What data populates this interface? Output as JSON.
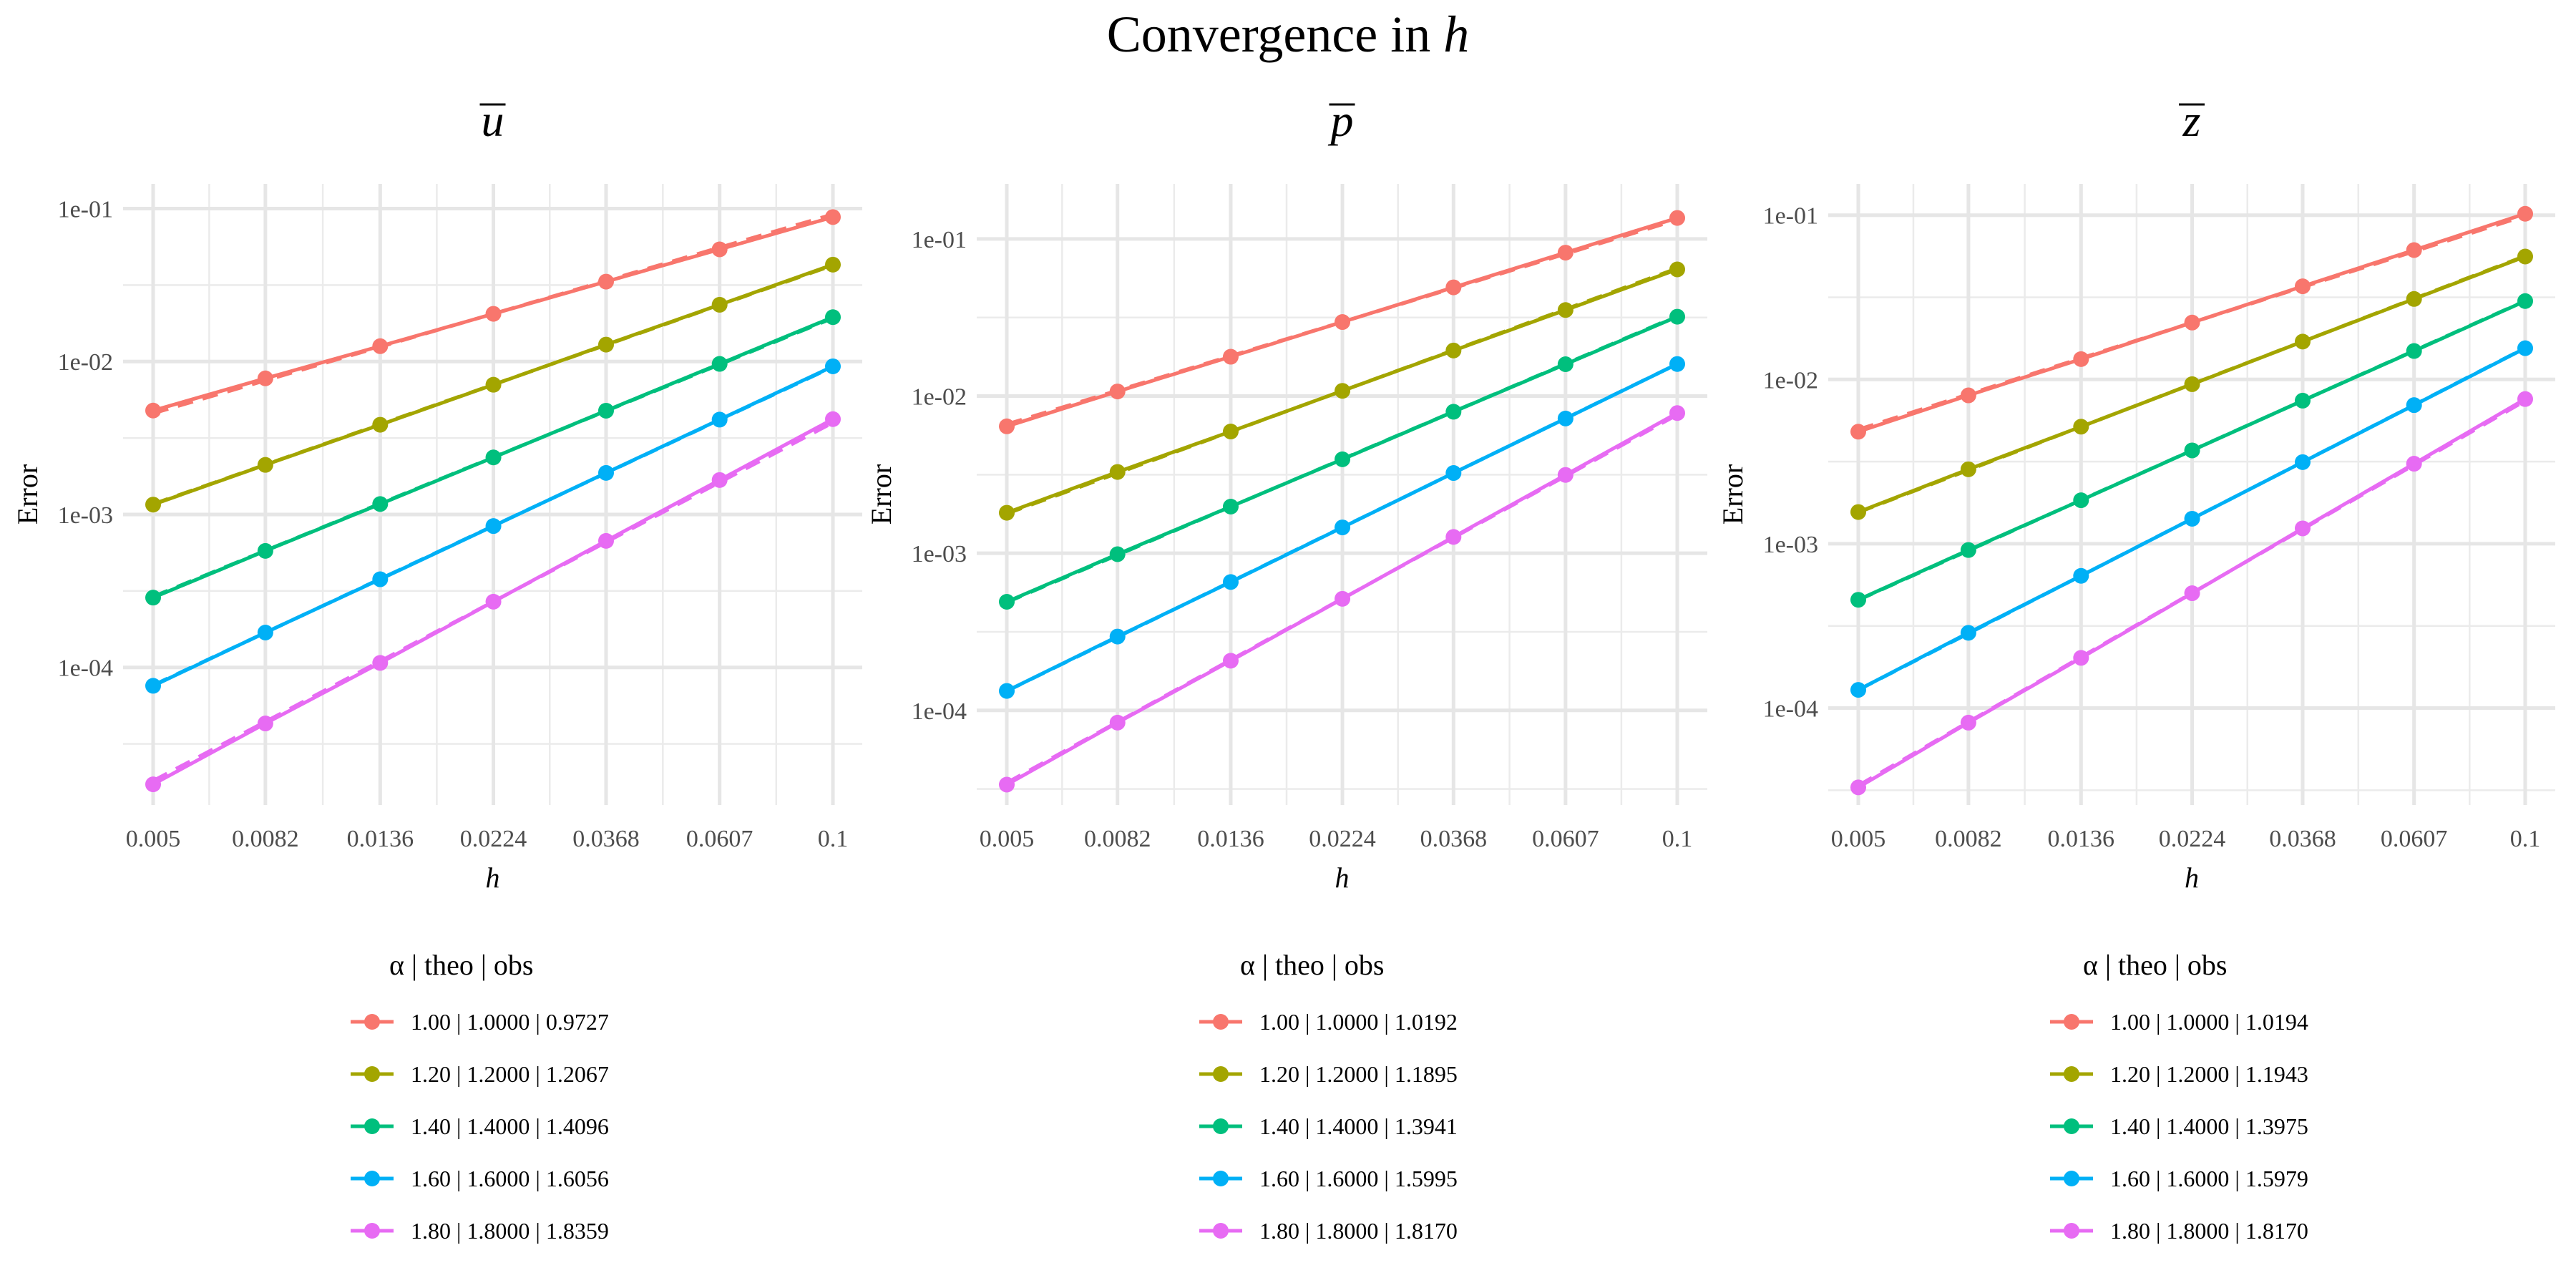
{
  "figure": {
    "title_text": "Convergence in",
    "title_var": "h"
  },
  "chart_data": [
    {
      "type": "line",
      "title": "u",
      "title_overline": true,
      "xlabel": "h",
      "ylabel": "Error",
      "x_scale": "log",
      "y_scale": "log",
      "x": [
        0.005,
        0.0082,
        0.0136,
        0.0224,
        0.0368,
        0.0607,
        0.1
      ],
      "x_tick_labels": [
        "0.005",
        "0.0082",
        "0.0136",
        "0.0224",
        "0.0368",
        "0.0607",
        "0.1"
      ],
      "y_ticks": [
        0.1,
        0.01,
        0.001,
        0.0001
      ],
      "y_tick_labels": [
        "1e-01",
        "1e-02",
        "1e-03",
        "1e-04"
      ],
      "ylim": [
        1.26e-05,
        0.145
      ],
      "grid": true,
      "legend_title": "α  | theo  | obs",
      "legend_position": "bottom",
      "series": [
        {
          "name": "1.00 | 1.0000 | 0.9727",
          "alpha": 1.0,
          "theo": 1.0,
          "obs": 0.9727,
          "color": "#F8766D",
          "values": [
            0.00478,
            0.00776,
            0.0126,
            0.0205,
            0.0333,
            0.0541,
            0.088
          ]
        },
        {
          "name": "1.20 | 1.2000 | 1.2067",
          "alpha": 1.2,
          "theo": 1.2,
          "obs": 1.2067,
          "color": "#A3A500",
          "values": [
            0.00116,
            0.00211,
            0.00386,
            0.00705,
            0.0129,
            0.0235,
            0.043
          ]
        },
        {
          "name": "1.40 | 1.4000 | 1.4096",
          "alpha": 1.4,
          "theo": 1.4,
          "obs": 1.4096,
          "color": "#00BF7D",
          "values": [
            0.000286,
            0.000578,
            0.00117,
            0.00236,
            0.00477,
            0.00965,
            0.0195
          ]
        },
        {
          "name": "1.60 | 1.6000 | 1.6056",
          "alpha": 1.6,
          "theo": 1.6,
          "obs": 1.6056,
          "color": "#00B0F6",
          "values": [
            7.58e-05,
            0.000169,
            0.000377,
            0.00084,
            0.00187,
            0.00417,
            0.0093
          ]
        },
        {
          "name": "1.80 | 1.8000 | 1.8359",
          "alpha": 1.8,
          "theo": 1.8,
          "obs": 1.8359,
          "color": "#E76BF3",
          "values": [
            1.72e-05,
            4.3e-05,
            0.000107,
            0.000269,
            0.000672,
            0.00168,
            0.0042
          ]
        }
      ]
    },
    {
      "type": "line",
      "title": "p",
      "title_overline": true,
      "xlabel": "h",
      "ylabel": "Error",
      "x_scale": "log",
      "y_scale": "log",
      "x": [
        0.005,
        0.0082,
        0.0136,
        0.0224,
        0.0368,
        0.0607,
        0.1
      ],
      "x_tick_labels": [
        "0.005",
        "0.0082",
        "0.0136",
        "0.0224",
        "0.0368",
        "0.0607",
        "0.1"
      ],
      "y_ticks": [
        0.1,
        0.01,
        0.001,
        0.0001
      ],
      "y_tick_labels": [
        "1e-01",
        "1e-02",
        "1e-03",
        "1e-04"
      ],
      "ylim": [
        2.5e-05,
        0.224
      ],
      "grid": true,
      "legend_title": "α  | theo  | obs",
      "legend_position": "bottom",
      "series": [
        {
          "name": "1.00 | 1.0000 | 1.0192",
          "alpha": 1.0,
          "theo": 1.0,
          "obs": 1.0192,
          "color": "#F8766D",
          "values": [
            0.00642,
            0.0107,
            0.0178,
            0.0296,
            0.0492,
            0.0818,
            0.136
          ]
        },
        {
          "name": "1.20 | 1.2000 | 1.1895",
          "alpha": 1.2,
          "theo": 1.2,
          "obs": 1.1895,
          "color": "#A3A500",
          "values": [
            0.00181,
            0.00329,
            0.00595,
            0.0108,
            0.0195,
            0.0353,
            0.064
          ]
        },
        {
          "name": "1.40 | 1.4000 | 1.3941",
          "alpha": 1.4,
          "theo": 1.4,
          "obs": 1.3941,
          "color": "#00BF7D",
          "values": [
            0.000491,
            0.000986,
            0.00198,
            0.00396,
            0.00795,
            0.01595,
            0.032
          ]
        },
        {
          "name": "1.60 | 1.6000 | 1.5995",
          "alpha": 1.6,
          "theo": 1.6,
          "obs": 1.5995,
          "color": "#00B0F6",
          "values": [
            0.000133,
            0.000295,
            0.000656,
            0.00146,
            0.00324,
            0.0072,
            0.016
          ]
        },
        {
          "name": "1.80 | 1.8000 | 1.8170",
          "alpha": 1.8,
          "theo": 1.8,
          "obs": 1.817,
          "color": "#E76BF3",
          "values": [
            3.37e-05,
            8.36e-05,
            0.000207,
            0.000513,
            0.00127,
            0.00315,
            0.0078
          ]
        }
      ]
    },
    {
      "type": "line",
      "title": "z",
      "title_overline": true,
      "xlabel": "h",
      "ylabel": "Error",
      "x_scale": "log",
      "y_scale": "log",
      "x": [
        0.005,
        0.0082,
        0.0136,
        0.0224,
        0.0368,
        0.0607,
        0.1
      ],
      "x_tick_labels": [
        "0.005",
        "0.0082",
        "0.0136",
        "0.0224",
        "0.0368",
        "0.0607",
        "0.1"
      ],
      "y_ticks": [
        0.1,
        0.01,
        0.001,
        0.0001
      ],
      "y_tick_labels": [
        "1e-01",
        "1e-02",
        "1e-03",
        "1e-04"
      ],
      "ylim": [
        2.57e-05,
        0.155
      ],
      "grid": true,
      "legend_title": "α  | theo  | obs",
      "legend_position": "bottom",
      "series": [
        {
          "name": "1.00 | 1.0000 | 1.0194",
          "alpha": 1.0,
          "theo": 1.0,
          "obs": 1.0194,
          "color": "#F8766D",
          "values": [
            0.00481,
            0.008,
            0.0133,
            0.0222,
            0.0369,
            0.0613,
            0.102
          ]
        },
        {
          "name": "1.20 | 1.2000 | 1.1943",
          "alpha": 1.2,
          "theo": 1.2,
          "obs": 1.1943,
          "color": "#A3A500",
          "values": [
            0.00156,
            0.00284,
            0.00516,
            0.00936,
            0.017,
            0.0309,
            0.056
          ]
        },
        {
          "name": "1.40 | 1.4000 | 1.3975",
          "alpha": 1.4,
          "theo": 1.4,
          "obs": 1.3975,
          "color": "#00BF7D",
          "values": [
            0.000456,
            0.000916,
            0.00184,
            0.0037,
            0.00743,
            0.0149,
            0.03
          ]
        },
        {
          "name": "1.60 | 1.6000 | 1.5979",
          "alpha": 1.6,
          "theo": 1.6,
          "obs": 1.5979,
          "color": "#00B0F6",
          "values": [
            0.000129,
            0.000287,
            0.000638,
            0.00142,
            0.00314,
            0.00698,
            0.0155
          ]
        },
        {
          "name": "1.80 | 1.8000 | 1.8170",
          "alpha": 1.8,
          "theo": 1.8,
          "obs": 1.817,
          "color": "#E76BF3",
          "values": [
            3.29e-05,
            8.15e-05,
            0.000202,
            0.0005,
            0.00124,
            0.00307,
            0.0076
          ]
        }
      ]
    }
  ]
}
